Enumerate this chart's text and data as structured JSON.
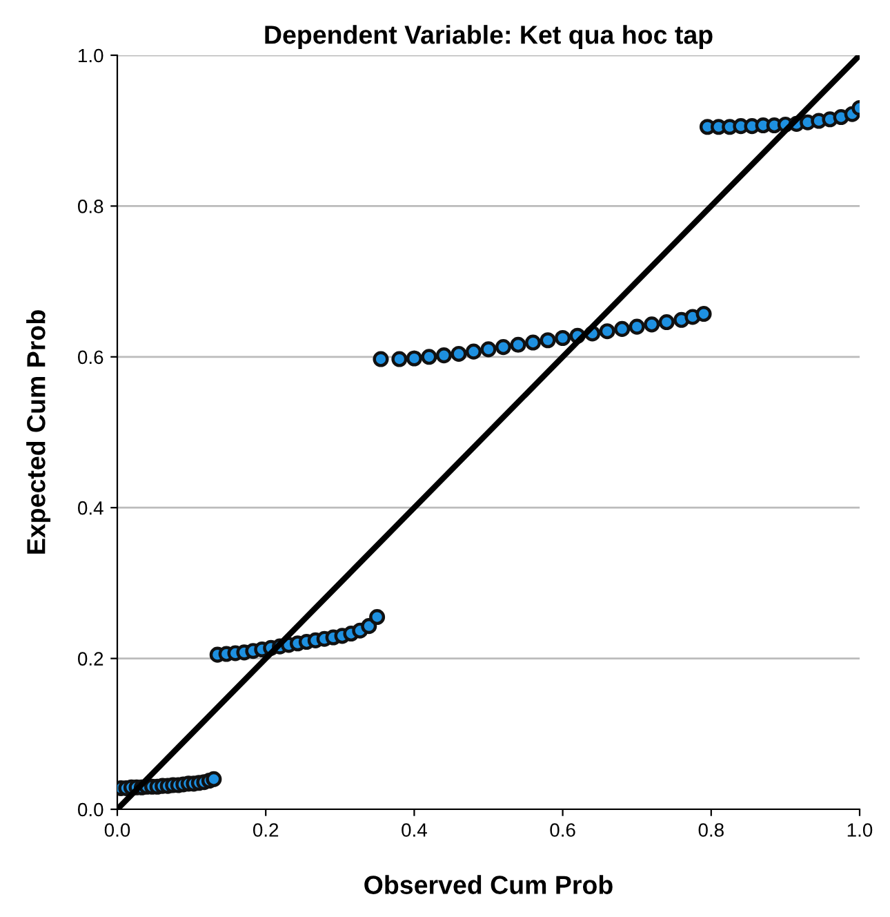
{
  "chart_data": {
    "type": "scatter",
    "title": "Dependent Variable: Ket qua hoc tap",
    "xlabel": "Observed Cum Prob",
    "ylabel": "Expected Cum Prob",
    "xlim": [
      0,
      1
    ],
    "ylim": [
      0,
      1
    ],
    "xticks": [
      {
        "value": 0,
        "label": "0.0"
      },
      {
        "value": 0.2,
        "label": "0.2"
      },
      {
        "value": 0.4,
        "label": "0.4"
      },
      {
        "value": 0.6,
        "label": "0.6"
      },
      {
        "value": 0.8,
        "label": "0.8"
      },
      {
        "value": 1,
        "label": "1.0"
      }
    ],
    "yticks": [
      {
        "value": 0,
        "label": "0.0"
      },
      {
        "value": 0.2,
        "label": "0.2"
      },
      {
        "value": 0.4,
        "label": "0.4"
      },
      {
        "value": 0.6,
        "label": "0.6"
      },
      {
        "value": 0.8,
        "label": "0.8"
      },
      {
        "value": 1,
        "label": "1.0"
      }
    ],
    "grid": "y",
    "legend": false,
    "series": [
      {
        "marker": "circle",
        "color": "#1e90e0",
        "x": [
          0.005,
          0.012,
          0.019,
          0.026,
          0.033,
          0.04,
          0.047,
          0.054,
          0.061,
          0.068,
          0.075,
          0.082,
          0.089,
          0.096,
          0.103,
          0.11,
          0.117,
          0.124,
          0.13,
          0.135,
          0.147,
          0.159,
          0.171,
          0.183,
          0.195,
          0.207,
          0.219,
          0.231,
          0.243,
          0.255,
          0.267,
          0.279,
          0.291,
          0.303,
          0.315,
          0.327,
          0.339,
          0.35,
          0.355,
          0.38,
          0.4,
          0.42,
          0.44,
          0.46,
          0.48,
          0.5,
          0.52,
          0.54,
          0.56,
          0.58,
          0.6,
          0.62,
          0.64,
          0.66,
          0.68,
          0.7,
          0.72,
          0.74,
          0.76,
          0.775,
          0.79,
          0.795,
          0.81,
          0.825,
          0.84,
          0.855,
          0.87,
          0.885,
          0.9,
          0.915,
          0.93,
          0.945,
          0.96,
          0.975,
          0.99,
          1.0
        ],
        "values": [
          0.028,
          0.028,
          0.029,
          0.029,
          0.029,
          0.03,
          0.03,
          0.03,
          0.031,
          0.031,
          0.032,
          0.032,
          0.033,
          0.034,
          0.034,
          0.035,
          0.036,
          0.038,
          0.04,
          0.205,
          0.206,
          0.207,
          0.208,
          0.21,
          0.212,
          0.214,
          0.216,
          0.218,
          0.22,
          0.222,
          0.224,
          0.226,
          0.228,
          0.23,
          0.233,
          0.237,
          0.243,
          0.255,
          0.597,
          0.597,
          0.598,
          0.6,
          0.602,
          0.604,
          0.607,
          0.61,
          0.613,
          0.616,
          0.619,
          0.622,
          0.625,
          0.628,
          0.631,
          0.634,
          0.637,
          0.64,
          0.643,
          0.646,
          0.649,
          0.653,
          0.657,
          0.905,
          0.905,
          0.905,
          0.906,
          0.906,
          0.907,
          0.907,
          0.908,
          0.909,
          0.911,
          0.913,
          0.915,
          0.918,
          0.922,
          0.93
        ]
      },
      {
        "type": "line",
        "marker": "none",
        "color": "#000000",
        "x": [
          0,
          1
        ],
        "values": [
          0,
          1
        ]
      }
    ]
  }
}
